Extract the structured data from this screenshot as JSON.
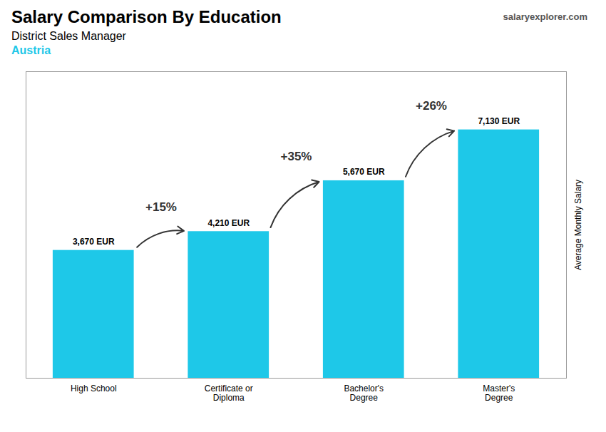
{
  "chart_data": {
    "type": "bar",
    "title": "Salary Comparison By Education",
    "subtitle": "District Sales Manager",
    "annotations": [
      "Austria",
      "salaryexplorer.com"
    ],
    "change_labels": [
      "+15%",
      "+35%",
      "+26%"
    ],
    "categories": [
      "High School",
      "Certificate or\nDiploma",
      "Bachelor's\nDegree",
      "Master's\nDegree"
    ],
    "values": [
      3670,
      4210,
      5670,
      7130
    ],
    "value_labels": [
      "3,670 EUR",
      "4,210 EUR",
      "5,670 EUR",
      "7,130 EUR"
    ],
    "data_labels": true,
    "color": "#1EC8E8",
    "ylabel": "Average Monthly Salary",
    "ylim": [
      0,
      8800
    ],
    "tick_labels": "x",
    "grid": false
  }
}
